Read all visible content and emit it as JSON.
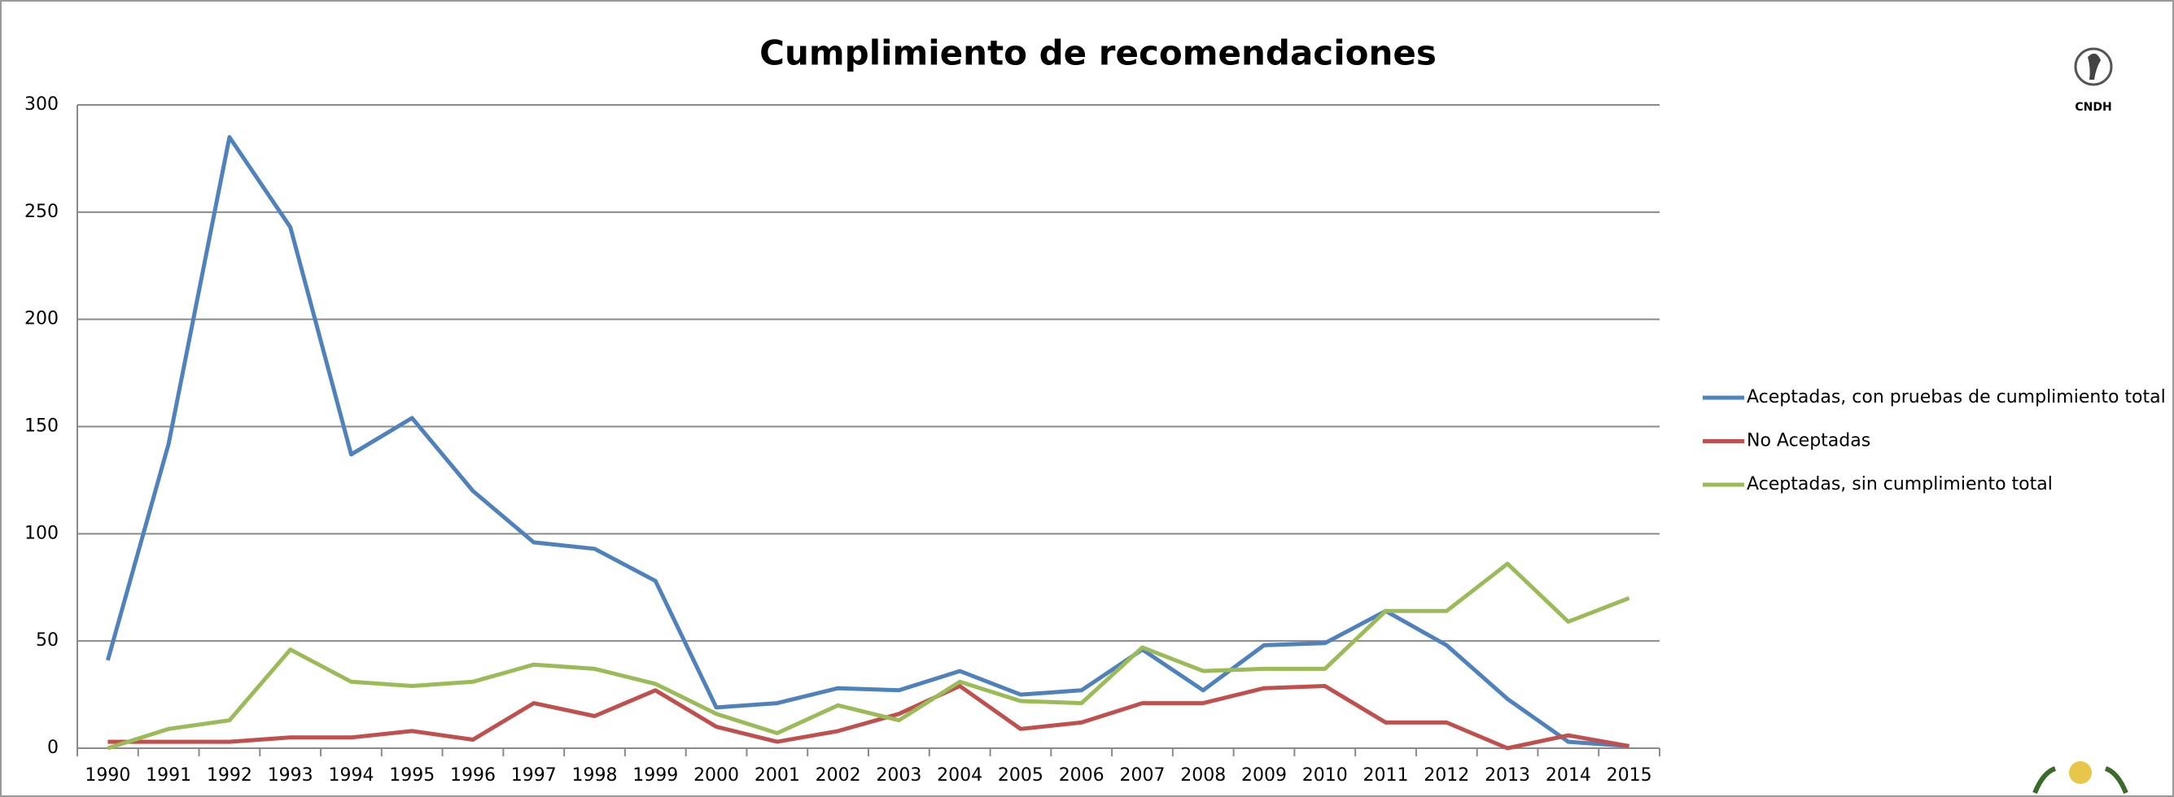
{
  "chart_data": {
    "type": "line",
    "title": "Cumplimiento de recomendaciones",
    "categories": [
      "1990",
      "1991",
      "1992",
      "1993",
      "1994",
      "1995",
      "1996",
      "1997",
      "1998",
      "1999",
      "2000",
      "2001",
      "2002",
      "2003",
      "2004",
      "2005",
      "2006",
      "2007",
      "2008",
      "2009",
      "2010",
      "2011",
      "2012",
      "2013",
      "2014",
      "2015"
    ],
    "series": [
      {
        "name": "Aceptadas, con pruebas de cumplimiento total",
        "color": "#4f81bd",
        "values": [
          41,
          142,
          285,
          243,
          137,
          154,
          120,
          96,
          93,
          78,
          19,
          21,
          28,
          27,
          36,
          25,
          27,
          46,
          27,
          48,
          49,
          64,
          48,
          23,
          3,
          1
        ]
      },
      {
        "name": "No Aceptadas",
        "color": "#c0504d",
        "values": [
          3,
          3,
          3,
          5,
          5,
          8,
          4,
          21,
          15,
          27,
          10,
          3,
          8,
          16,
          29,
          9,
          12,
          21,
          21,
          28,
          29,
          12,
          12,
          0,
          6,
          1
        ]
      },
      {
        "name": "Aceptadas, sin cumplimiento total",
        "color": "#9bbb59",
        "values": [
          0,
          9,
          13,
          46,
          31,
          29,
          31,
          39,
          37,
          30,
          16,
          7,
          20,
          13,
          31,
          22,
          21,
          47,
          36,
          37,
          37,
          64,
          64,
          86,
          59,
          70
        ]
      }
    ],
    "ylim": [
      0,
      300
    ],
    "yticks": [
      0,
      50,
      100,
      150,
      200,
      250,
      300
    ],
    "grid": true,
    "legend": "right",
    "logo_text": "CNDH"
  }
}
